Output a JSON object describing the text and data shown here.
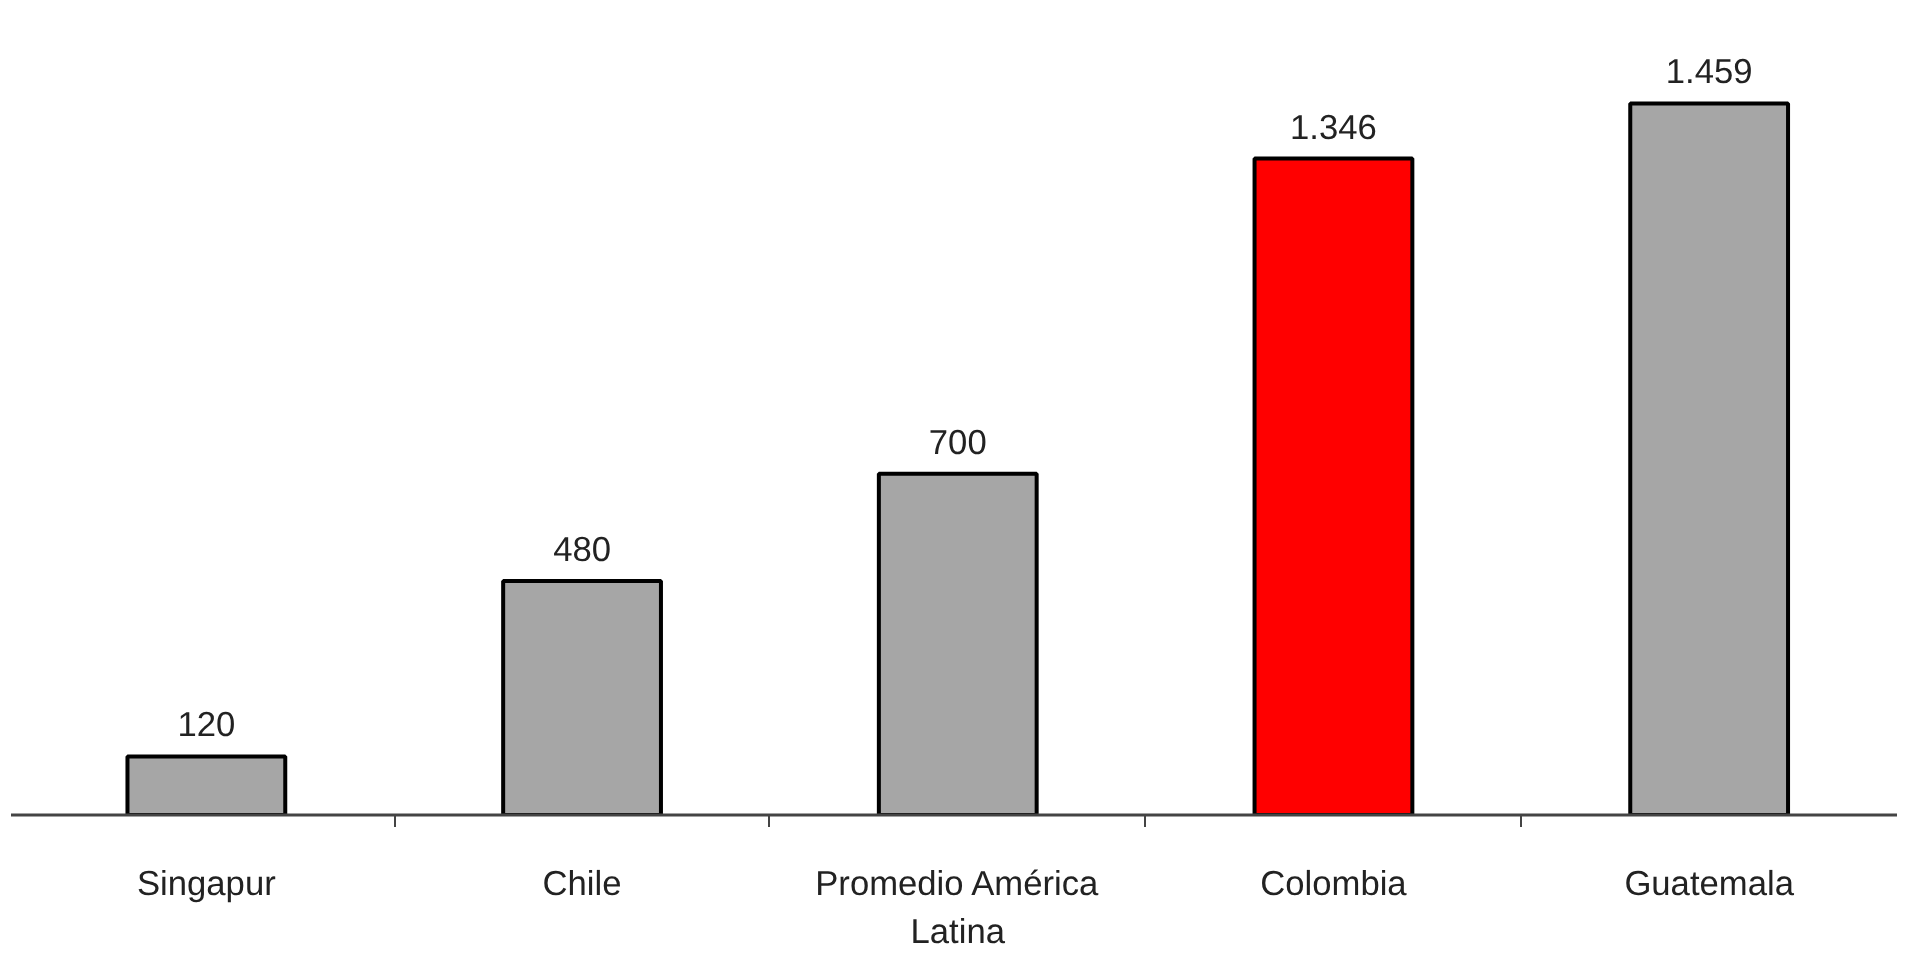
{
  "chart_data": {
    "type": "bar",
    "categories": [
      "Singapur",
      "Chile",
      "Promedio América Latina",
      "Colombia",
      "Guatemala"
    ],
    "values": [
      120,
      480,
      700,
      1346,
      1459
    ],
    "colors": [
      "#a6a6a6",
      "#a6a6a6",
      "#a6a6a6",
      "#ff0000",
      "#a6a6a6"
    ],
    "value_labels": [
      "120",
      "480",
      "700",
      "1.346",
      "1.459"
    ]
  }
}
